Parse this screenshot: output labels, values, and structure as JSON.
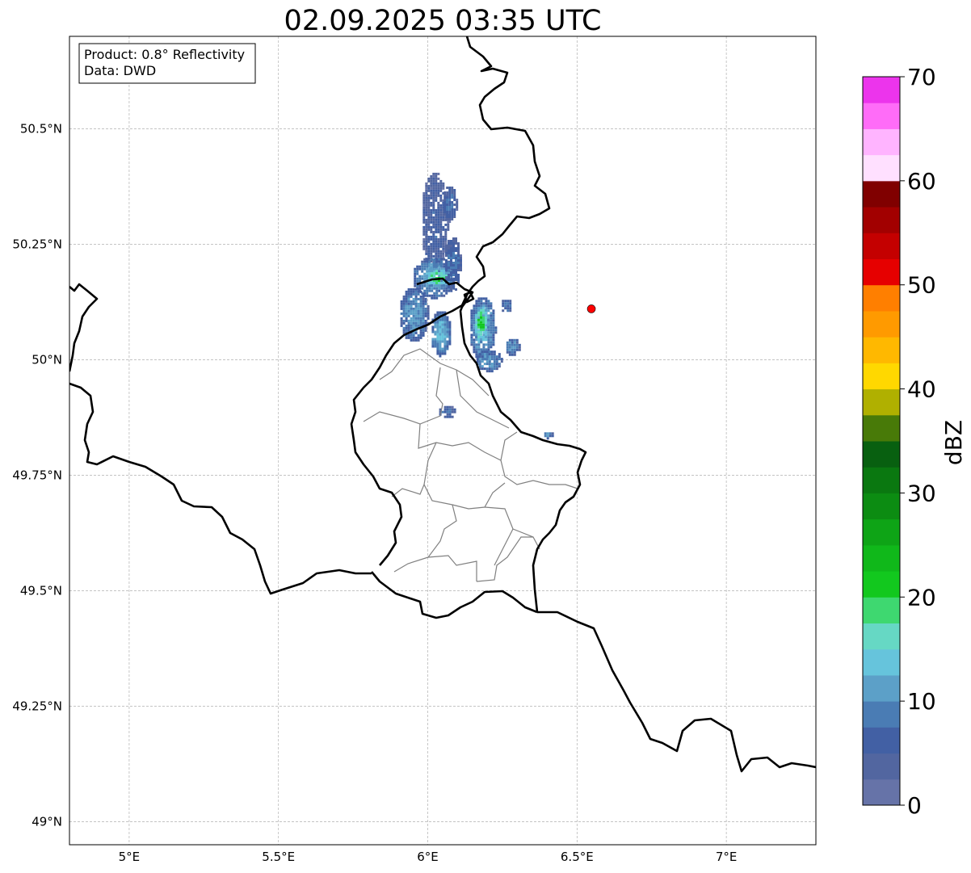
{
  "title": "02.09.2025 03:35 UTC",
  "info_box": {
    "product": "Product: 0.8° Reflectivity",
    "source": "Data: DWD"
  },
  "map": {
    "lon_range": [
      4.8,
      7.3
    ],
    "lat_range": [
      48.95,
      50.7
    ],
    "lon_ticks": [
      {
        "value": 5.0,
        "label": "5°E"
      },
      {
        "value": 5.5,
        "label": "5.5°E"
      },
      {
        "value": 6.0,
        "label": "6°E"
      },
      {
        "value": 6.5,
        "label": "6.5°E"
      },
      {
        "value": 7.0,
        "label": "7°E"
      }
    ],
    "lat_ticks": [
      {
        "value": 50.5,
        "label": "50.5°N"
      },
      {
        "value": 50.25,
        "label": "50.25°N"
      },
      {
        "value": 50.0,
        "label": "50°N"
      },
      {
        "value": 49.75,
        "label": "49.75°N"
      },
      {
        "value": 49.5,
        "label": "49.5°N"
      },
      {
        "value": 49.25,
        "label": "49.25°N"
      },
      {
        "value": 49.0,
        "label": "49°N"
      }
    ],
    "gridlines": true,
    "radar_site": {
      "lon": 6.548,
      "lat": 50.11,
      "color": "#ff0000"
    },
    "echo_cells": [
      {
        "lon": 6.02,
        "lat": 50.3,
        "rlon": 0.045,
        "rlat": 0.11,
        "level": 6
      },
      {
        "lon": 6.07,
        "lat": 50.34,
        "rlon": 0.025,
        "rlat": 0.04,
        "level": 8
      },
      {
        "lon": 6.02,
        "lat": 50.18,
        "rlon": 0.075,
        "rlat": 0.045,
        "level": 12
      },
      {
        "lon": 6.03,
        "lat": 50.18,
        "rlon": 0.045,
        "rlat": 0.02,
        "level": 20
      },
      {
        "lon": 5.95,
        "lat": 50.1,
        "rlon": 0.05,
        "rlat": 0.06,
        "level": 11
      },
      {
        "lon": 6.04,
        "lat": 50.06,
        "rlon": 0.035,
        "rlat": 0.05,
        "level": 13
      },
      {
        "lon": 6.08,
        "lat": 50.21,
        "rlon": 0.03,
        "rlat": 0.06,
        "level": 8
      },
      {
        "lon": 6.18,
        "lat": 50.07,
        "rlon": 0.045,
        "rlat": 0.07,
        "level": 13
      },
      {
        "lon": 6.175,
        "lat": 50.08,
        "rlon": 0.025,
        "rlat": 0.04,
        "level": 21
      },
      {
        "lon": 6.2,
        "lat": 50.0,
        "rlon": 0.045,
        "rlat": 0.025,
        "level": 11
      },
      {
        "lon": 6.28,
        "lat": 50.03,
        "rlon": 0.025,
        "rlat": 0.02,
        "level": 10
      },
      {
        "lon": 6.26,
        "lat": 50.12,
        "rlon": 0.02,
        "rlat": 0.015,
        "level": 9
      },
      {
        "lon": 6.06,
        "lat": 49.89,
        "rlon": 0.03,
        "rlat": 0.015,
        "level": 7
      },
      {
        "lon": 6.4,
        "lat": 49.84,
        "rlon": 0.018,
        "rlat": 0.008,
        "level": 10
      }
    ]
  },
  "colorbar": {
    "label": "dBZ",
    "min": 0,
    "max": 70,
    "step": 2.5,
    "ticks": [
      0,
      10,
      20,
      30,
      40,
      50,
      60,
      70
    ],
    "colors": [
      "#6673a8",
      "#5266a0",
      "#4260a4",
      "#4a7cb4",
      "#5ca0c8",
      "#66c4dc",
      "#66d8c4",
      "#3ed870",
      "#12c81e",
      "#10b81a",
      "#0ea416",
      "#0c8c12",
      "#0a7810",
      "#086010",
      "#487a08",
      "#b0b000",
      "#ffd800",
      "#ffb800",
      "#ff9a00",
      "#ff7f00",
      "#e60000",
      "#c40000",
      "#a20000",
      "#800000",
      "#ffe0ff",
      "#ffb4ff",
      "#ff6cf8",
      "#ec34ec"
    ]
  }
}
